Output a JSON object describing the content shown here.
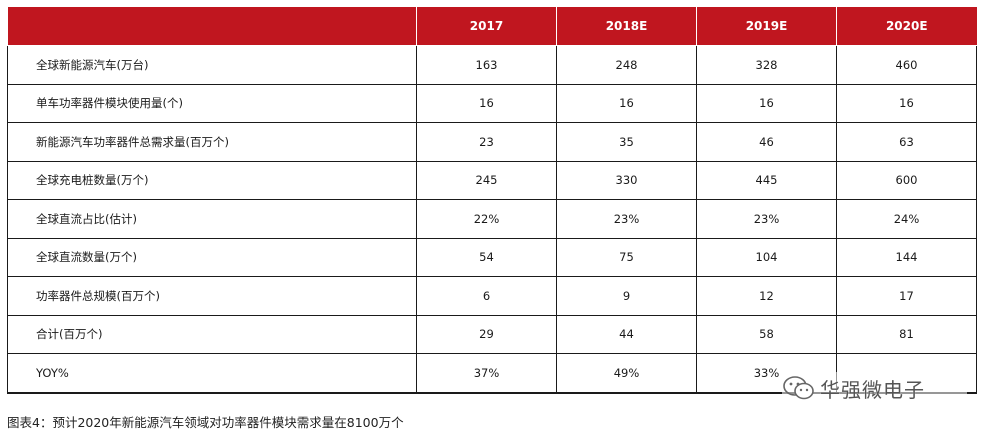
{
  "table": {
    "headers": [
      "",
      "2017",
      "2018E",
      "2019E",
      "2020E"
    ],
    "rows": [
      {
        "label": "全球新能源汽车(万台)",
        "values": [
          "163",
          "248",
          "328",
          "460"
        ]
      },
      {
        "label": "单车功率器件模块使用量(个)",
        "values": [
          "16",
          "16",
          "16",
          "16"
        ]
      },
      {
        "label": "新能源汽车功率器件总需求量(百万个)",
        "values": [
          "23",
          "35",
          "46",
          "63"
        ]
      },
      {
        "label": "全球充电桩数量(万个)",
        "values": [
          "245",
          "330",
          "445",
          "600"
        ]
      },
      {
        "label": "全球直流占比(估计)",
        "values": [
          "22%",
          "23%",
          "23%",
          "24%"
        ]
      },
      {
        "label": "全球直流数量(万个)",
        "values": [
          "54",
          "75",
          "104",
          "144"
        ]
      },
      {
        "label": "功率器件总规模(百万个)",
        "values": [
          "6",
          "9",
          "12",
          "17"
        ]
      },
      {
        "label": "合计(百万个)",
        "values": [
          "29",
          "44",
          "58",
          "81"
        ]
      },
      {
        "label": "YOY%",
        "values": [
          "37%",
          "49%",
          "33%",
          ""
        ]
      }
    ]
  },
  "caption": "图表4：预计2020年新能源汽车领域对功率器件模块需求量在8100万个",
  "watermark": {
    "text": "华强微电子",
    "icon": "wechat-icon"
  },
  "colors": {
    "header_bg": "#c0161f",
    "header_text": "#ffffff",
    "border": "#1a1a1a"
  }
}
